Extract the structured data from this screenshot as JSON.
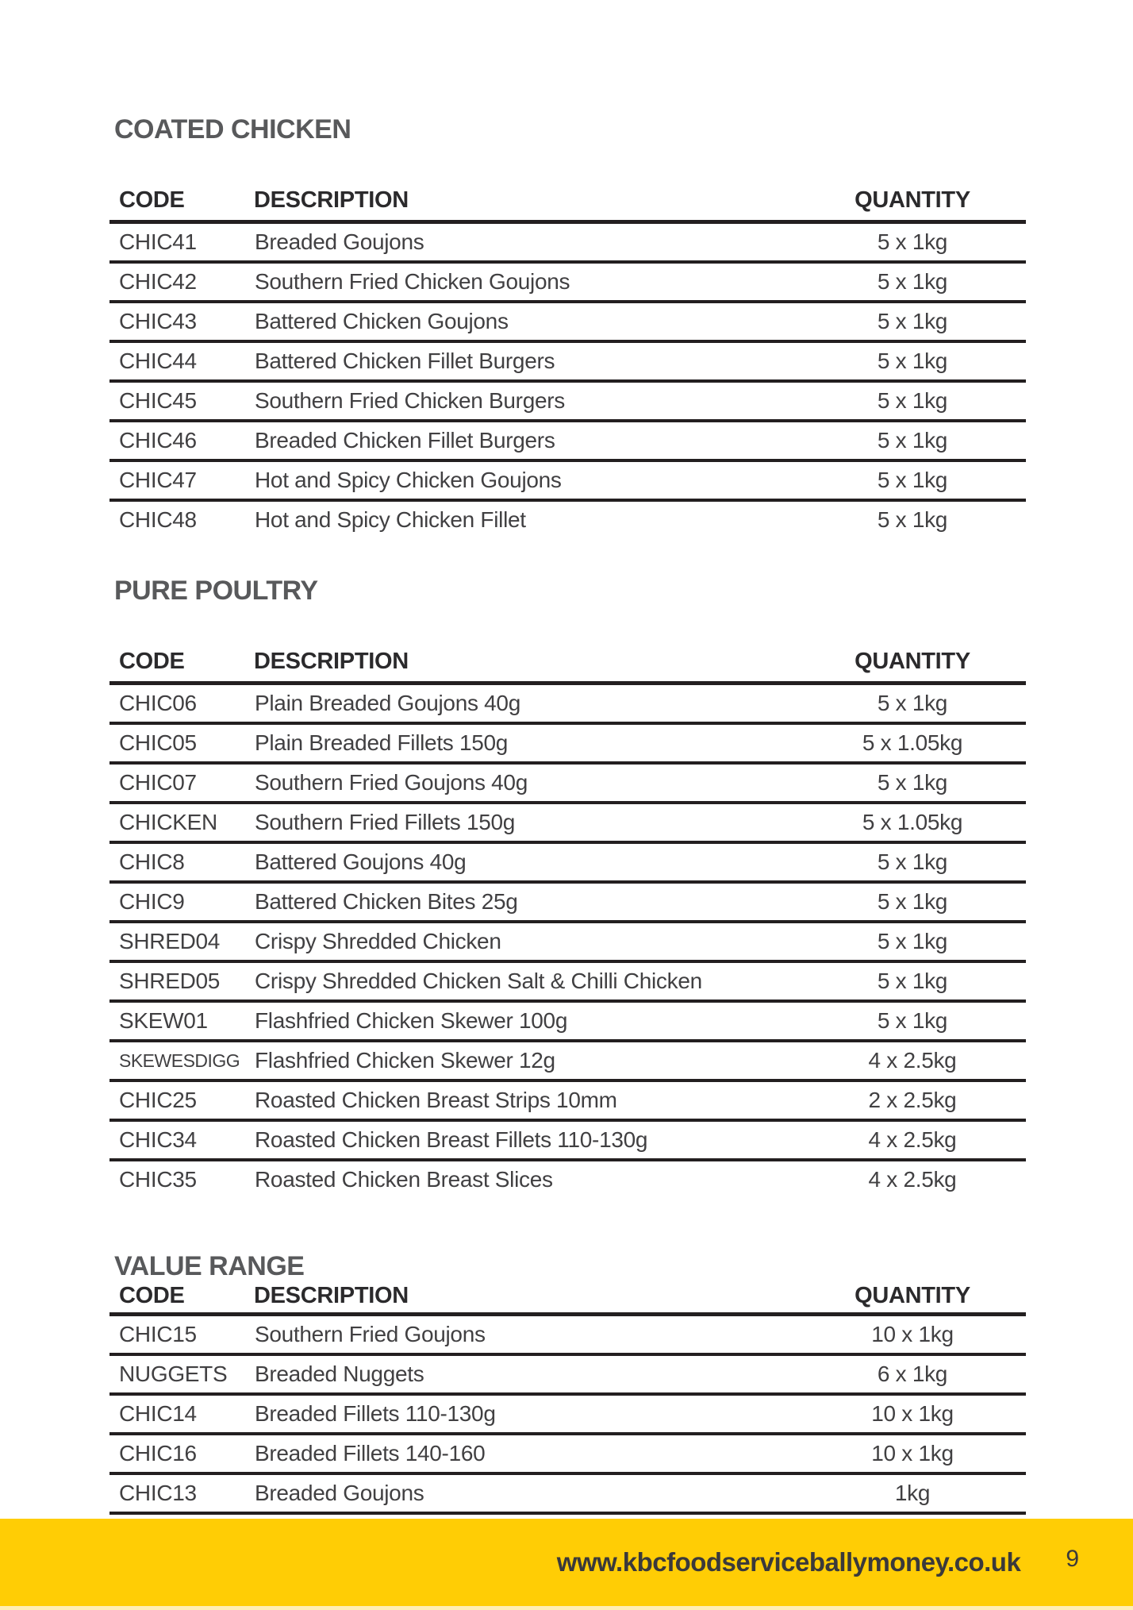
{
  "theme": {
    "accent_yellow": "#ffcd05",
    "heading_color": "#58595b",
    "body_text_color": "#414042",
    "rule_color": "#231f20",
    "page_background": "#ffffff"
  },
  "sections": [
    {
      "title": "COATED CHICKEN",
      "columns": [
        "CODE",
        "DESCRIPTION",
        "QUANTITY"
      ],
      "bottom_border": false,
      "rows": [
        {
          "code": "CHIC41",
          "description": "Breaded Goujons",
          "quantity": "5 x 1kg"
        },
        {
          "code": "CHIC42",
          "description": "Southern Fried Chicken Goujons",
          "quantity": "5 x 1kg"
        },
        {
          "code": "CHIC43",
          "description": "Battered Chicken Goujons",
          "quantity": "5 x 1kg"
        },
        {
          "code": "CHIC44",
          "description": "Battered Chicken Fillet Burgers",
          "quantity": "5 x 1kg"
        },
        {
          "code": "CHIC45",
          "description": "Southern Fried Chicken Burgers",
          "quantity": "5 x 1kg"
        },
        {
          "code": "CHIC46",
          "description": "Breaded Chicken Fillet Burgers",
          "quantity": "5 x 1kg"
        },
        {
          "code": "CHIC47",
          "description": "Hot and Spicy Chicken Goujons",
          "quantity": "5 x 1kg"
        },
        {
          "code": "CHIC48",
          "description": "Hot and Spicy Chicken Fillet",
          "quantity": "5 x 1kg"
        }
      ]
    },
    {
      "title": "PURE POULTRY",
      "columns": [
        "CODE",
        "DESCRIPTION",
        "QUANTITY"
      ],
      "bottom_border": false,
      "rows": [
        {
          "code": "CHIC06",
          "description": "Plain Breaded Goujons 40g",
          "quantity": "5 x 1kg"
        },
        {
          "code": "CHIC05",
          "description": "Plain Breaded Fillets 150g",
          "quantity": "5 x 1.05kg"
        },
        {
          "code": "CHIC07",
          "description": "Southern Fried Goujons 40g",
          "quantity": "5 x 1kg"
        },
        {
          "code": "CHICKEN",
          "description": "Southern Fried Fillets 150g",
          "quantity": "5 x 1.05kg"
        },
        {
          "code": "CHIC8",
          "description": "Battered Goujons 40g",
          "quantity": "5 x 1kg"
        },
        {
          "code": "CHIC9",
          "description": "Battered Chicken Bites 25g",
          "quantity": "5 x 1kg"
        },
        {
          "code": "SHRED04",
          "description": "Crispy Shredded Chicken",
          "quantity": "5 x 1kg"
        },
        {
          "code": "SHRED05",
          "description": "Crispy Shredded Chicken Salt & Chilli Chicken",
          "quantity": "5 x 1kg"
        },
        {
          "code": "SKEW01",
          "description": "Flashfried Chicken Skewer 100g",
          "quantity": "5 x 1kg"
        },
        {
          "code": "SKEWESDIGG",
          "code_small": true,
          "description": "Flashfried Chicken Skewer 12g",
          "quantity": "4 x 2.5kg"
        },
        {
          "code": "CHIC25",
          "description": "Roasted Chicken Breast Strips 10mm",
          "quantity": "2 x 2.5kg"
        },
        {
          "code": "CHIC34",
          "description": "Roasted Chicken Breast Fillets 110-130g",
          "quantity": "4 x 2.5kg"
        },
        {
          "code": "CHIC35",
          "description": "Roasted Chicken Breast Slices",
          "quantity": "4 x 2.5kg"
        }
      ]
    },
    {
      "title": "VALUE RANGE",
      "columns": [
        "CODE",
        "DESCRIPTION",
        "QUANTITY"
      ],
      "bottom_border": true,
      "rows": [
        {
          "code": "CHIC15",
          "description": "Southern Fried Goujons",
          "quantity": "10 x 1kg"
        },
        {
          "code": "NUGGETS",
          "description": "Breaded Nuggets",
          "quantity": "6 x 1kg"
        },
        {
          "code": "CHIC14",
          "description": "Breaded Fillets 110-130g",
          "quantity": "10 x 1kg"
        },
        {
          "code": "CHIC16",
          "description": "Breaded Fillets 140-160",
          "quantity": "10 x 1kg"
        },
        {
          "code": "CHIC13",
          "description": "Breaded Goujons",
          "quantity": "1kg"
        }
      ]
    }
  ],
  "footer": {
    "url": "www.kbcfoodserviceballymoney.co.uk",
    "page_number": "9"
  }
}
